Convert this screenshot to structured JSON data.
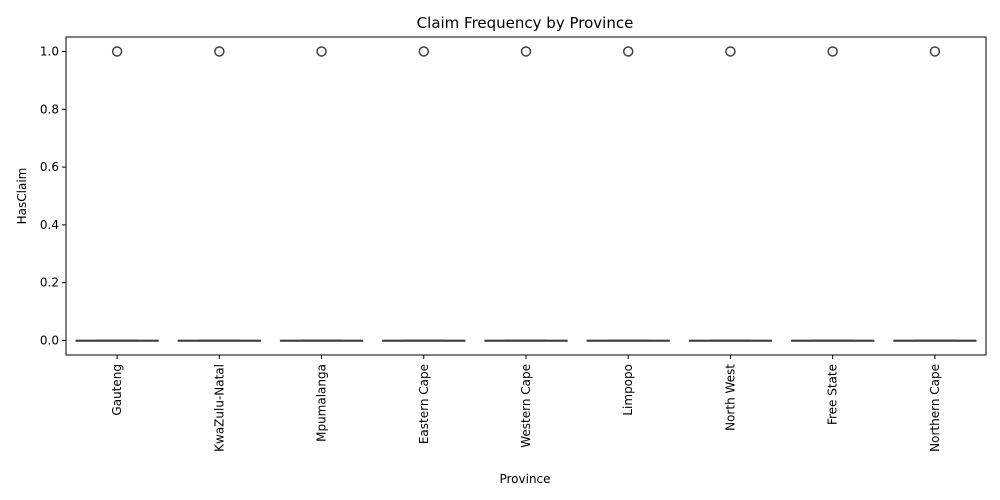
{
  "chart_data": {
    "type": "box",
    "title": "Claim Frequency by Province",
    "xlabel": "Province",
    "ylabel": "HasClaim",
    "categories": [
      "Gauteng",
      "KwaZulu-Natal",
      "Mpumalanga",
      "Eastern Cape",
      "Western Cape",
      "Limpopo",
      "North West",
      "Free State",
      "Northern Cape"
    ],
    "ylim": [
      -0.05,
      1.05
    ],
    "yticks": [
      0.0,
      0.2,
      0.4,
      0.6,
      0.8,
      1.0
    ],
    "ytick_labels": [
      "0.0",
      "0.2",
      "0.4",
      "0.6",
      "0.8",
      "1.0"
    ],
    "boxes": [
      {
        "category": "Gauteng",
        "min": 0,
        "q1": 0,
        "median": 0,
        "q3": 0,
        "max": 0,
        "outliers": [
          1
        ]
      },
      {
        "category": "KwaZulu-Natal",
        "min": 0,
        "q1": 0,
        "median": 0,
        "q3": 0,
        "max": 0,
        "outliers": [
          1
        ]
      },
      {
        "category": "Mpumalanga",
        "min": 0,
        "q1": 0,
        "median": 0,
        "q3": 0,
        "max": 0,
        "outliers": [
          1
        ]
      },
      {
        "category": "Eastern Cape",
        "min": 0,
        "q1": 0,
        "median": 0,
        "q3": 0,
        "max": 0,
        "outliers": [
          1
        ]
      },
      {
        "category": "Western Cape",
        "min": 0,
        "q1": 0,
        "median": 0,
        "q3": 0,
        "max": 0,
        "outliers": [
          1
        ]
      },
      {
        "category": "Limpopo",
        "min": 0,
        "q1": 0,
        "median": 0,
        "q3": 0,
        "max": 0,
        "outliers": [
          1
        ]
      },
      {
        "category": "North West",
        "min": 0,
        "q1": 0,
        "median": 0,
        "q3": 0,
        "max": 0,
        "outliers": [
          1
        ]
      },
      {
        "category": "Free State",
        "min": 0,
        "q1": 0,
        "median": 0,
        "q3": 0,
        "max": 0,
        "outliers": [
          1
        ]
      },
      {
        "category": "Northern Cape",
        "min": 0,
        "q1": 0,
        "median": 0,
        "q3": 0,
        "max": 0,
        "outliers": [
          1
        ]
      }
    ],
    "box_color": "#3f3f3f",
    "grid": false,
    "legend": "none"
  }
}
